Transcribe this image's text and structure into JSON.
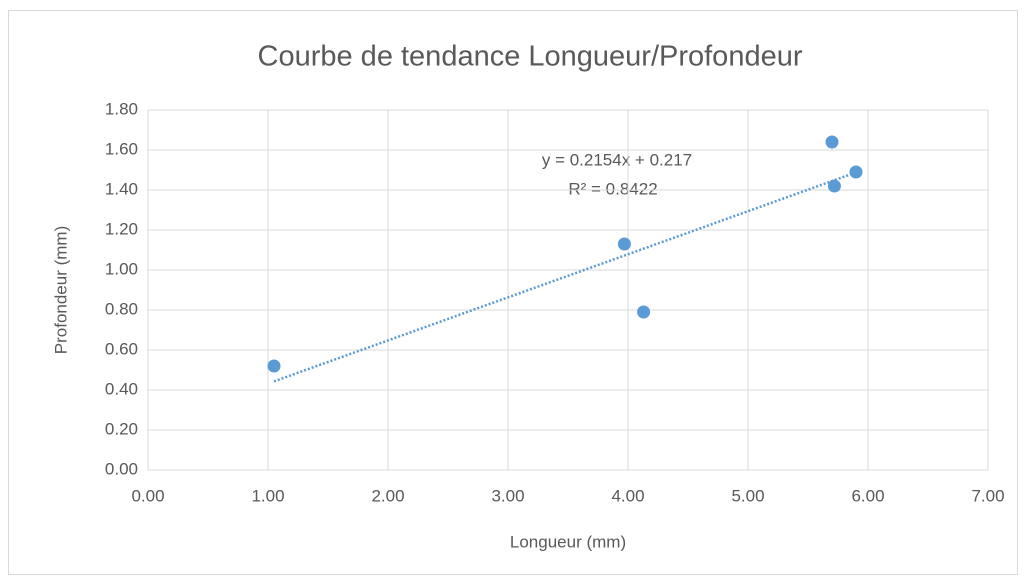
{
  "chart_data": {
    "type": "scatter",
    "title": "Courbe de tendance Longueur/Profondeur",
    "x_label": "Longueur (mm)",
    "y_label": "Profondeur (mm)",
    "x": [
      1.05,
      3.97,
      4.13,
      5.7,
      5.72,
      5.9
    ],
    "values": [
      0.52,
      1.13,
      0.79,
      1.64,
      1.42,
      1.49
    ],
    "color": "#5b9bd5",
    "xlim": [
      0,
      7
    ],
    "ylim": [
      0,
      1.8
    ],
    "xticks": [
      {
        "value": 0,
        "label": "0.00"
      },
      {
        "value": 1,
        "label": "1.00"
      },
      {
        "value": 2,
        "label": "2.00"
      },
      {
        "value": 3,
        "label": "3.00"
      },
      {
        "value": 4,
        "label": "4.00"
      },
      {
        "value": 5,
        "label": "5.00"
      },
      {
        "value": 6,
        "label": "6.00"
      },
      {
        "value": 7,
        "label": "7.00"
      }
    ],
    "yticks": [
      {
        "value": 0,
        "label": "0.00"
      },
      {
        "value": 0.2,
        "label": "0.20"
      },
      {
        "value": 0.4,
        "label": "0.40"
      },
      {
        "value": 0.6,
        "label": "0.60"
      },
      {
        "value": 0.8,
        "label": "0.80"
      },
      {
        "value": 1,
        "label": "1.00"
      },
      {
        "value": 1.2,
        "label": "1.20"
      },
      {
        "value": 1.4,
        "label": "1.40"
      },
      {
        "value": 1.6,
        "label": "1.60"
      },
      {
        "value": 1.8,
        "label": "1.80"
      }
    ],
    "grid": true,
    "trendline": {
      "slope": 0.2154,
      "intercept": 0.217,
      "equation": "y = 0.2154x + 0.217",
      "r2": 0.8422,
      "r2_label": "R² = 0.8422"
    }
  }
}
